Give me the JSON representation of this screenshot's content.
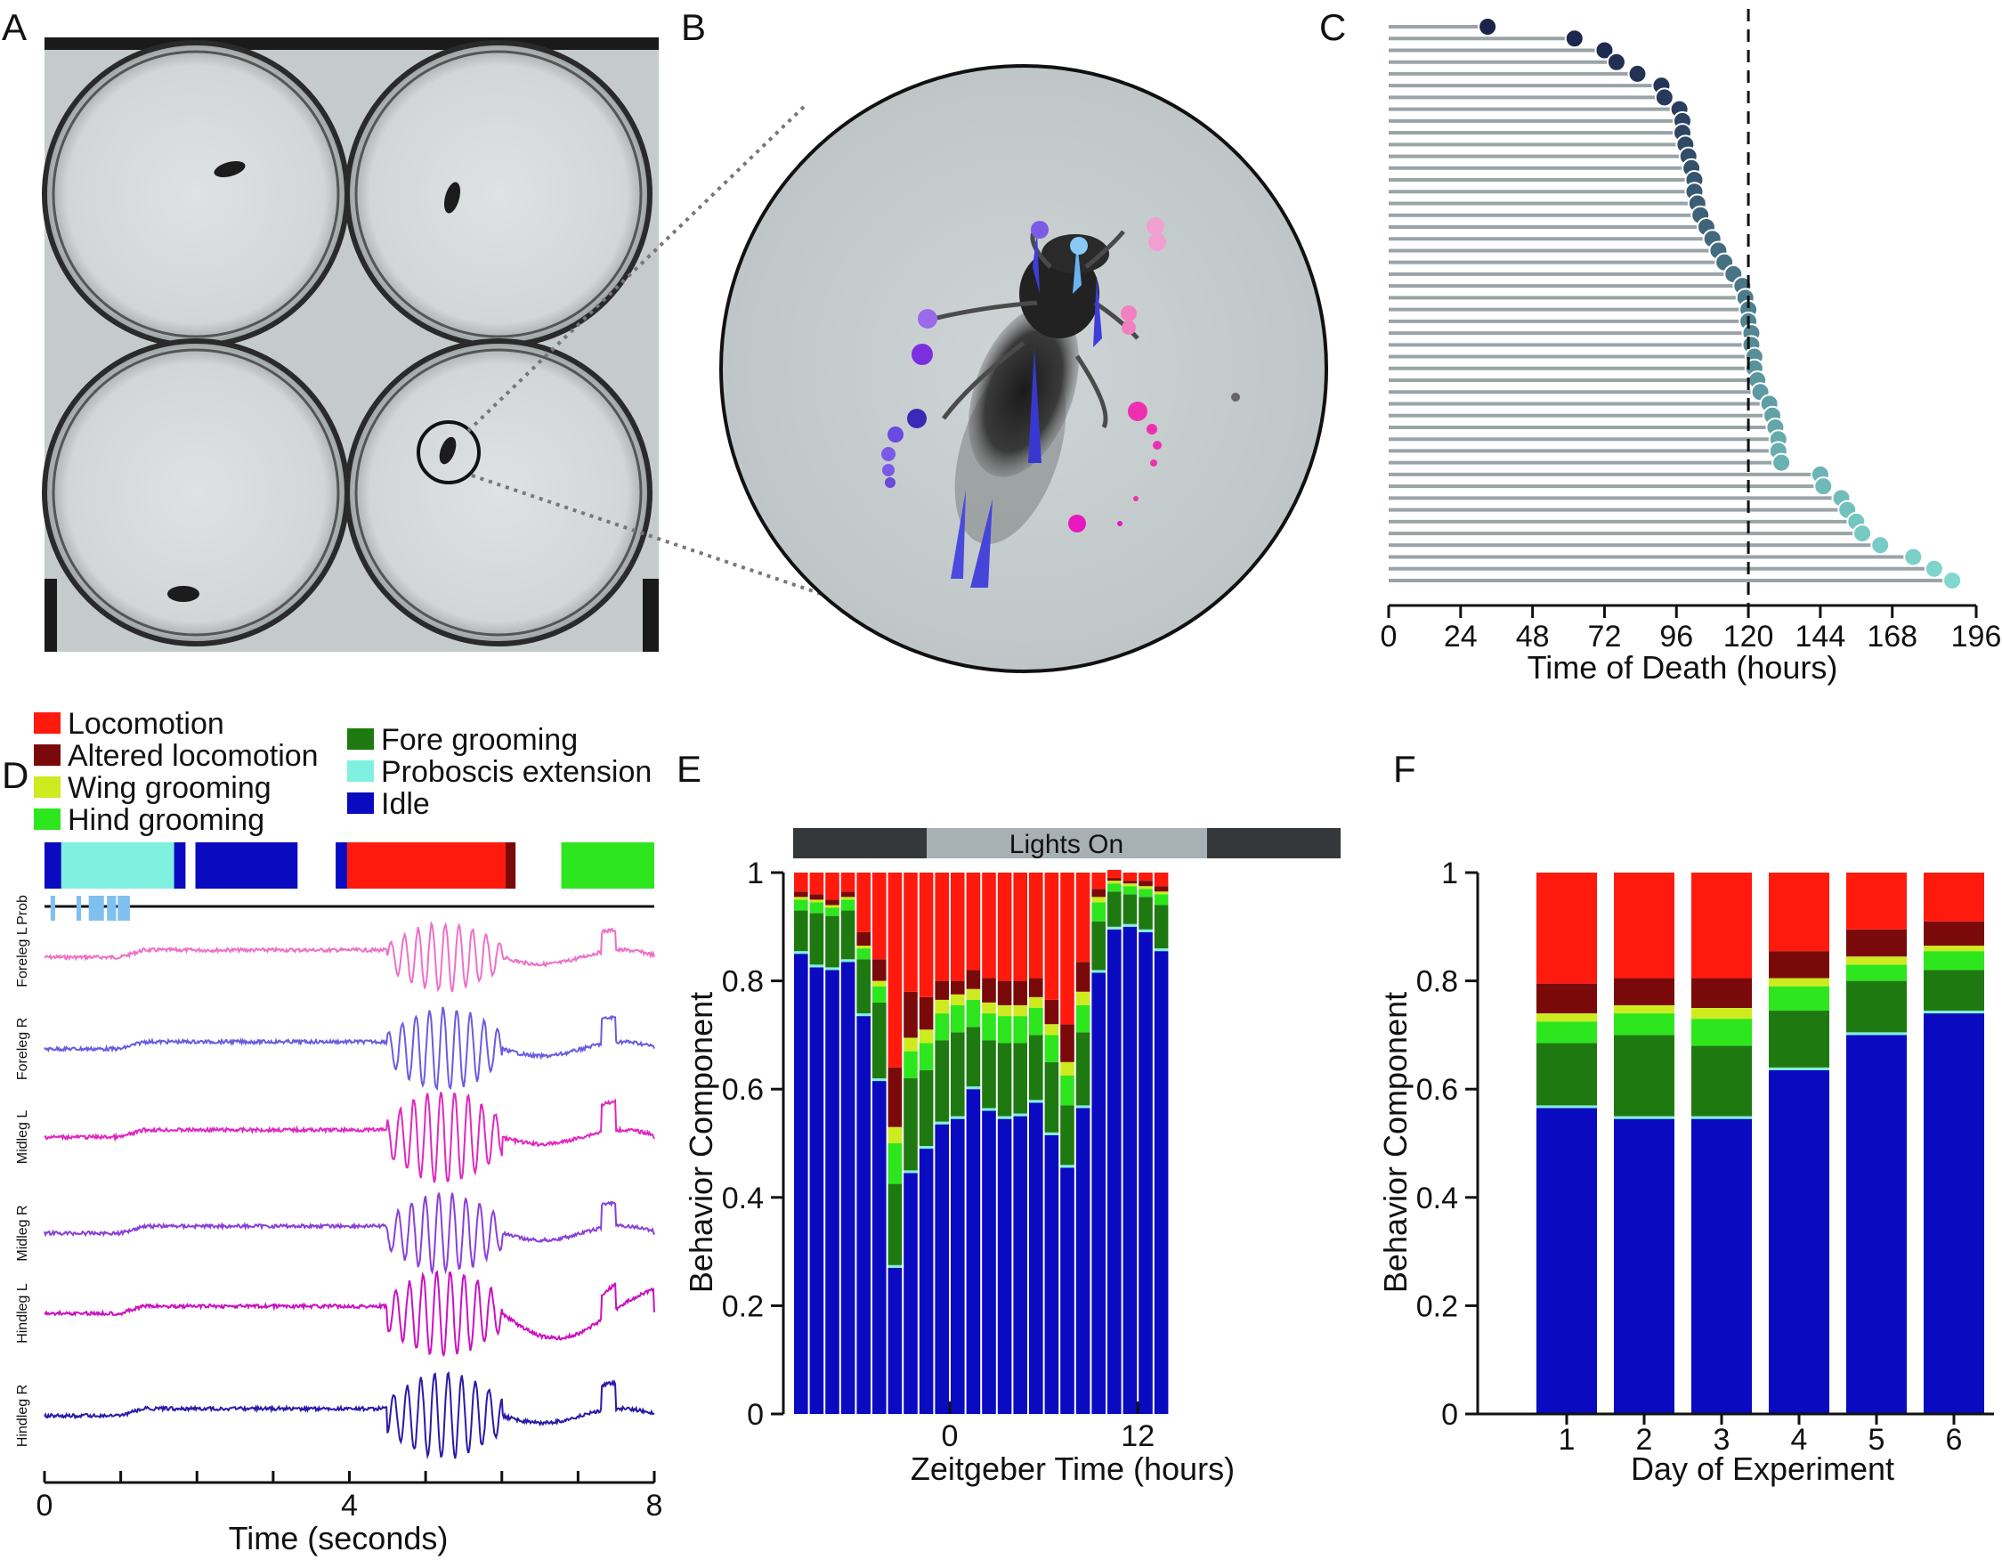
{
  "panel_labels": [
    "A",
    "B",
    "C",
    "D",
    "E",
    "F"
  ],
  "colors": {
    "locomotion": "#ff1a0d",
    "altered_locomotion": "#7a0a0a",
    "wing_grooming": "#cdeb1e",
    "hind_grooming": "#2ee61e",
    "fore_grooming": "#1e7a10",
    "proboscis_extension": "#80f0e0",
    "idle": "#0a0ac0"
  },
  "legend": {
    "col1": [
      {
        "key": "locomotion",
        "label": "Locomotion"
      },
      {
        "key": "altered_locomotion",
        "label": "Altered locomotion"
      },
      {
        "key": "wing_grooming",
        "label": "Wing grooming"
      },
      {
        "key": "hind_grooming",
        "label": "Hind grooming"
      }
    ],
    "col2": [
      {
        "key": "fore_grooming",
        "label": "Fore grooming"
      },
      {
        "key": "proboscis_extension",
        "label": "Proboscis extension"
      },
      {
        "key": "idle",
        "label": "Idle"
      }
    ]
  },
  "chart_data": [
    {
      "panel": "C",
      "type": "scatter",
      "xlabel": "Time of Death (hours)",
      "xticks": [
        0,
        24,
        48,
        72,
        96,
        120,
        144,
        168,
        196
      ],
      "xlim": [
        0,
        196
      ],
      "reference_line_x": 120,
      "x": [
        33,
        62,
        72,
        76,
        83,
        91,
        92,
        97,
        98,
        98,
        99,
        100,
        101,
        102,
        102,
        103,
        104,
        106,
        108,
        110,
        112,
        115,
        118,
        119,
        120,
        120,
        121,
        121,
        122,
        122,
        123,
        124,
        127,
        128,
        129,
        130,
        130,
        131,
        144,
        145,
        151,
        153,
        156,
        158,
        164,
        175,
        182,
        188
      ]
    },
    {
      "panel": "D",
      "type": "line",
      "xlabel": "Time (seconds)",
      "xticks": [
        0,
        4,
        8
      ],
      "xlim": [
        0,
        8
      ],
      "ethogram": [
        {
          "behavior": "idle",
          "start": 0.0,
          "end": 0.22
        },
        {
          "behavior": "proboscis_extension",
          "start": 0.22,
          "end": 1.7
        },
        {
          "behavior": "idle",
          "start": 1.7,
          "end": 1.85
        },
        {
          "behavior": "idle",
          "start": 1.98,
          "end": 3.32
        },
        {
          "behavior": "idle",
          "start": 3.82,
          "end": 3.97
        },
        {
          "behavior": "locomotion",
          "start": 3.97,
          "end": 6.05
        },
        {
          "behavior": "altered_locomotion",
          "start": 6.05,
          "end": 6.18
        },
        {
          "behavior": "hind_grooming",
          "start": 6.78,
          "end": 8.0
        }
      ],
      "proboscis_label": "Prob",
      "proboscis_events": [
        {
          "start": 0.08,
          "end": 0.14
        },
        {
          "start": 0.42,
          "end": 0.48
        },
        {
          "start": 0.58,
          "end": 0.78
        },
        {
          "start": 0.82,
          "end": 0.94
        },
        {
          "start": 0.96,
          "end": 1.12
        }
      ],
      "series": [
        {
          "name": "Foreleg L",
          "color": "#ee70c8",
          "amp": 38
        },
        {
          "name": "Foreleg R",
          "color": "#6a5ce0",
          "amp": 46
        },
        {
          "name": "Midleg L",
          "color": "#e028c0",
          "amp": 52
        },
        {
          "name": "Midleg R",
          "color": "#8a40d8",
          "amp": 44
        },
        {
          "name": "Hindleg L",
          "color": "#cc10c0",
          "amp": 48
        },
        {
          "name": "Hindleg R",
          "color": "#2a1aa8",
          "amp": 48
        }
      ]
    },
    {
      "panel": "E",
      "type": "bar",
      "stacked": true,
      "xlabel": "Zeitgeber Time (hours)",
      "ylabel": "Behavior Component",
      "ylim": [
        0,
        1
      ],
      "yticks": [
        "0",
        "0.2",
        "0.4",
        "0.6",
        "0.8",
        "1"
      ],
      "xticks": [
        {
          "label": "0",
          "bar": 10
        },
        {
          "label": "12",
          "bar": 22
        }
      ],
      "lights_label": "Lights On",
      "lights_on_bars": [
        10,
        21
      ],
      "stack_order": [
        "idle",
        "proboscis_extension",
        "fore_grooming",
        "hind_grooming",
        "wing_grooming",
        "altered_locomotion",
        "locomotion"
      ],
      "bars": [
        [
          0.85,
          0.005,
          0.075,
          0.02,
          0.005,
          0.01,
          0.035
        ],
        [
          0.825,
          0.005,
          0.095,
          0.02,
          0.005,
          0.01,
          0.04
        ],
        [
          0.82,
          0.005,
          0.095,
          0.015,
          0.005,
          0.01,
          0.05
        ],
        [
          0.835,
          0.005,
          0.09,
          0.02,
          0.005,
          0.01,
          0.035
        ],
        [
          0.735,
          0.005,
          0.1,
          0.02,
          0.005,
          0.025,
          0.11
        ],
        [
          0.615,
          0.005,
          0.14,
          0.03,
          0.01,
          0.04,
          0.16
        ],
        [
          0.27,
          0.005,
          0.15,
          0.075,
          0.03,
          0.11,
          0.36
        ],
        [
          0.445,
          0.005,
          0.17,
          0.05,
          0.025,
          0.085,
          0.22
        ],
        [
          0.49,
          0.005,
          0.14,
          0.05,
          0.025,
          0.06,
          0.23
        ],
        [
          0.535,
          0.005,
          0.15,
          0.05,
          0.025,
          0.035,
          0.2
        ],
        [
          0.545,
          0.005,
          0.155,
          0.05,
          0.02,
          0.025,
          0.2
        ],
        [
          0.6,
          0.005,
          0.11,
          0.05,
          0.02,
          0.035,
          0.18
        ],
        [
          0.56,
          0.005,
          0.125,
          0.05,
          0.02,
          0.045,
          0.195
        ],
        [
          0.545,
          0.005,
          0.135,
          0.05,
          0.02,
          0.045,
          0.2
        ],
        [
          0.55,
          0.005,
          0.13,
          0.05,
          0.02,
          0.045,
          0.2
        ],
        [
          0.575,
          0.005,
          0.12,
          0.05,
          0.02,
          0.035,
          0.195
        ],
        [
          0.515,
          0.005,
          0.13,
          0.05,
          0.02,
          0.045,
          0.235
        ],
        [
          0.455,
          0.005,
          0.11,
          0.055,
          0.025,
          0.07,
          0.28
        ],
        [
          0.565,
          0.005,
          0.135,
          0.05,
          0.025,
          0.055,
          0.165
        ],
        [
          0.815,
          0.005,
          0.09,
          0.035,
          0.01,
          0.015,
          0.03
        ],
        [
          0.895,
          0.005,
          0.065,
          0.015,
          0.005,
          0.005,
          0.015
        ],
        [
          0.9,
          0.005,
          0.055,
          0.015,
          0.005,
          0.005,
          0.015
        ],
        [
          0.89,
          0.005,
          0.06,
          0.015,
          0.005,
          0.01,
          0.015
        ],
        [
          0.855,
          0.005,
          0.08,
          0.02,
          0.005,
          0.01,
          0.025
        ]
      ]
    },
    {
      "panel": "F",
      "type": "bar",
      "stacked": true,
      "xlabel": "Day of Experiment",
      "ylabel": "Behavior Component",
      "ylim": [
        0,
        1
      ],
      "yticks": [
        "0",
        "0.2",
        "0.4",
        "0.6",
        "0.8",
        "1"
      ],
      "categories": [
        "1",
        "2",
        "3",
        "4",
        "5",
        "6"
      ],
      "stack_order": [
        "idle",
        "proboscis_extension",
        "fore_grooming",
        "hind_grooming",
        "wing_grooming",
        "altered_locomotion",
        "locomotion"
      ],
      "bars": [
        [
          0.565,
          0.005,
          0.115,
          0.04,
          0.015,
          0.055,
          0.205
        ],
        [
          0.545,
          0.005,
          0.15,
          0.04,
          0.015,
          0.05,
          0.195
        ],
        [
          0.545,
          0.005,
          0.13,
          0.05,
          0.02,
          0.055,
          0.195
        ],
        [
          0.635,
          0.005,
          0.105,
          0.045,
          0.015,
          0.05,
          0.145
        ],
        [
          0.7,
          0.005,
          0.095,
          0.03,
          0.015,
          0.05,
          0.105
        ],
        [
          0.74,
          0.005,
          0.075,
          0.035,
          0.01,
          0.045,
          0.09
        ]
      ]
    }
  ]
}
